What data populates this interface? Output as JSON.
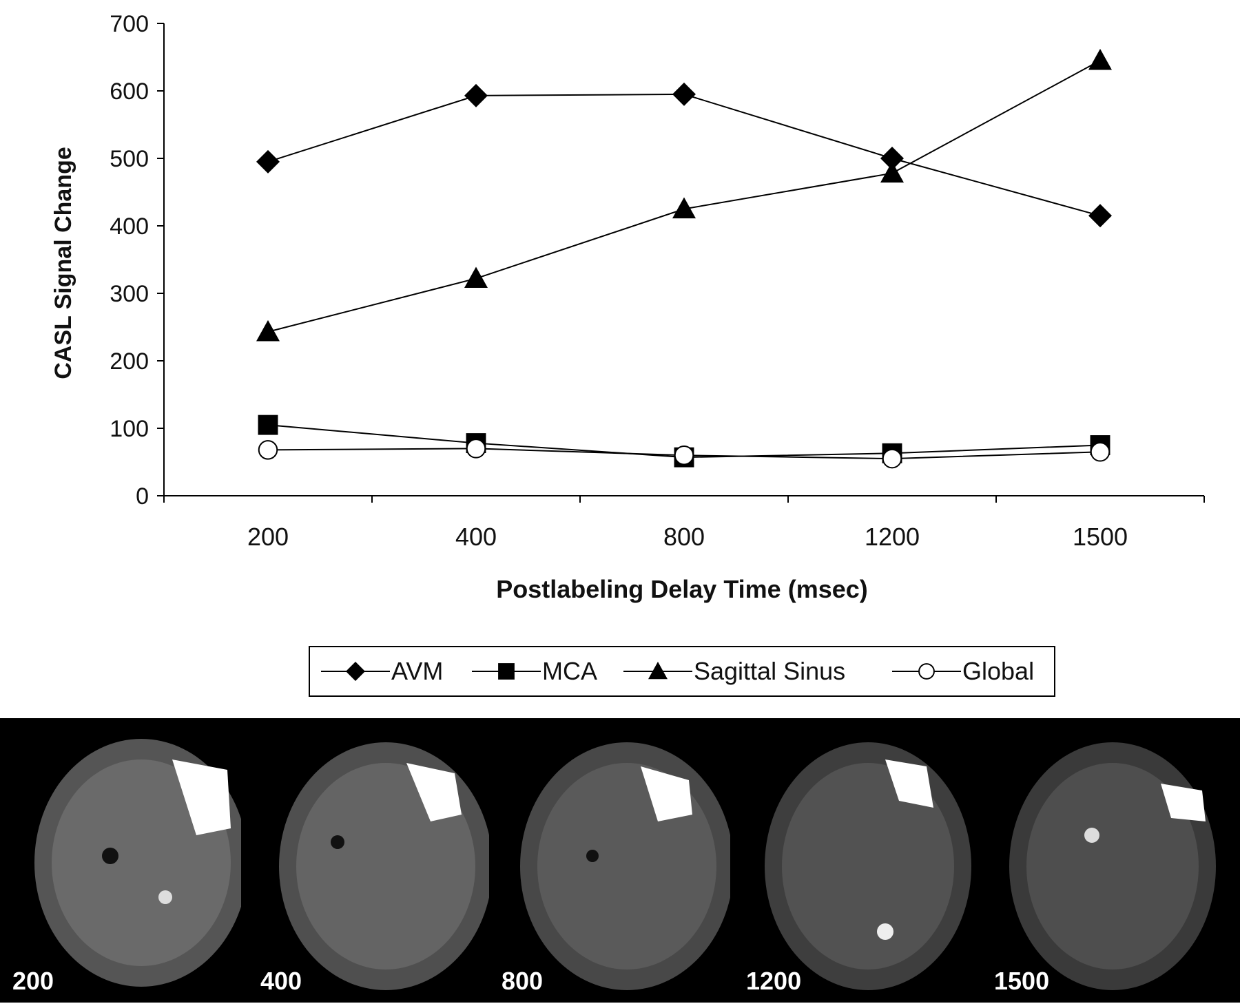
{
  "chart_data": {
    "type": "line",
    "xlabel": "Postlabeling Delay Time (msec)",
    "ylabel": "CASL Signal Change",
    "categories": [
      "200",
      "400",
      "800",
      "1200",
      "1500"
    ],
    "ylim": [
      0,
      700
    ],
    "yticks": [
      "0",
      "100",
      "200",
      "300",
      "400",
      "500",
      "600",
      "700"
    ],
    "grid": false,
    "legend_position": "bottom",
    "series": [
      {
        "name": "AVM",
        "marker": "diamond",
        "values": [
          495,
          593,
          595,
          500,
          415
        ]
      },
      {
        "name": "MCA",
        "marker": "square",
        "values": [
          105,
          78,
          57,
          63,
          75
        ]
      },
      {
        "name": "Sagittal Sinus",
        "marker": "triangle",
        "values": [
          243,
          322,
          425,
          478,
          645
        ]
      },
      {
        "name": "Global",
        "marker": "circle-open",
        "values": [
          68,
          70,
          60,
          55,
          65
        ]
      }
    ]
  },
  "image_strip": {
    "labels": [
      "200",
      "400",
      "800",
      "1200",
      "1500"
    ]
  }
}
